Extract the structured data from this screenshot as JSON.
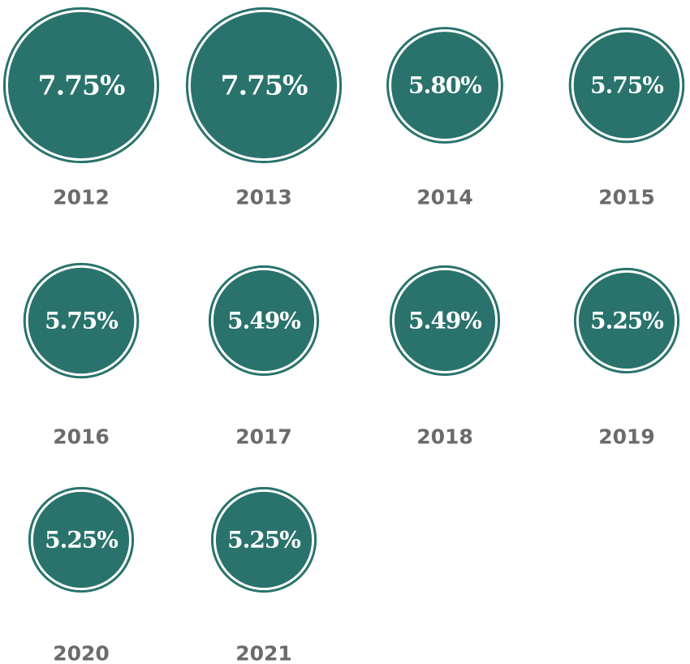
{
  "chart_data": {
    "type": "bubble",
    "categories": [
      "2012",
      "2013",
      "2014",
      "2015",
      "2016",
      "2017",
      "2018",
      "2019",
      "2020",
      "2021"
    ],
    "values": [
      7.75,
      7.75,
      5.8,
      5.75,
      5.75,
      5.49,
      5.49,
      5.25,
      5.25,
      5.25
    ],
    "value_labels": [
      "7.75%",
      "7.75%",
      "5.80%",
      "5.75%",
      "5.75%",
      "5.49%",
      "5.49%",
      "5.25%",
      "5.25%",
      "5.25%"
    ],
    "color": "#29736c"
  }
}
